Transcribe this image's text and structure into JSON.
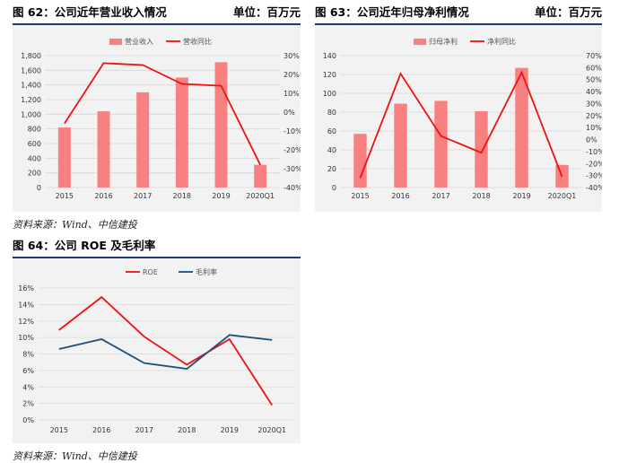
{
  "figures": [
    {
      "title": "图 62：公司近年营业收入情况",
      "unit": "单位：百万元"
    },
    {
      "title": "图 63：公司近年归母净利情况",
      "unit": "单位：百万元"
    },
    {
      "title": "图 64：公司 ROE 及毛利率",
      "unit": ""
    }
  ],
  "sources": [
    "资料来源：Wind、中信建投",
    "资料来源：Wind、中信建投"
  ],
  "colors": {
    "bar": "#f88080",
    "line_red": "#ee1111",
    "line_blue": "#1f4e79",
    "rule": "#1f3a6b"
  },
  "chart_data": [
    {
      "type": "bar",
      "categories": [
        "2015",
        "2016",
        "2017",
        "2018",
        "2019",
        "2020Q1"
      ],
      "series": [
        {
          "name": "营业收入",
          "type": "bar",
          "axis": "left",
          "values": [
            820,
            1040,
            1300,
            1500,
            1710,
            310
          ]
        },
        {
          "name": "营收同比",
          "type": "line",
          "axis": "right",
          "values": [
            -0.06,
            0.26,
            0.25,
            0.15,
            0.14,
            -0.28
          ]
        }
      ],
      "ylim": [
        0,
        1800
      ],
      "yticks": [
        "0",
        "200",
        "400",
        "600",
        "800",
        "1,000",
        "1,200",
        "1,400",
        "1,600",
        "1,800"
      ],
      "y2lim": [
        -0.4,
        0.3
      ],
      "y2ticks": [
        "-40%",
        "-30%",
        "-20%",
        "-10%",
        "0%",
        "10%",
        "20%",
        "30%"
      ],
      "legend": "top-center"
    },
    {
      "type": "bar",
      "categories": [
        "2015",
        "2016",
        "2017",
        "2018",
        "2019",
        "2020Q1"
      ],
      "series": [
        {
          "name": "归母净利",
          "type": "bar",
          "axis": "left",
          "values": [
            57,
            89,
            92,
            81,
            127,
            24
          ]
        },
        {
          "name": "净利同比",
          "type": "line",
          "axis": "right",
          "values": [
            -0.32,
            0.55,
            0.03,
            -0.11,
            0.56,
            -0.31
          ]
        }
      ],
      "ylim": [
        0,
        140
      ],
      "yticks": [
        "0",
        "20",
        "40",
        "60",
        "80",
        "100",
        "120",
        "140"
      ],
      "y2lim": [
        -0.4,
        0.7
      ],
      "y2ticks": [
        "-40%",
        "-30%",
        "-20%",
        "-10%",
        "0%",
        "10%",
        "20%",
        "30%",
        "40%",
        "50%",
        "60%",
        "70%"
      ],
      "legend": "top-center"
    },
    {
      "type": "line",
      "categories": [
        "2015",
        "2016",
        "2017",
        "2018",
        "2019",
        "2020Q1"
      ],
      "series": [
        {
          "name": "ROE",
          "values": [
            0.109,
            0.149,
            0.101,
            0.067,
            0.098,
            0.018
          ]
        },
        {
          "name": "毛利率",
          "values": [
            0.086,
            0.098,
            0.069,
            0.062,
            0.103,
            0.097
          ]
        }
      ],
      "ylim": [
        0,
        0.16
      ],
      "yticks": [
        "0%",
        "2%",
        "4%",
        "6%",
        "8%",
        "10%",
        "12%",
        "14%",
        "16%"
      ],
      "legend": "top-left"
    }
  ]
}
